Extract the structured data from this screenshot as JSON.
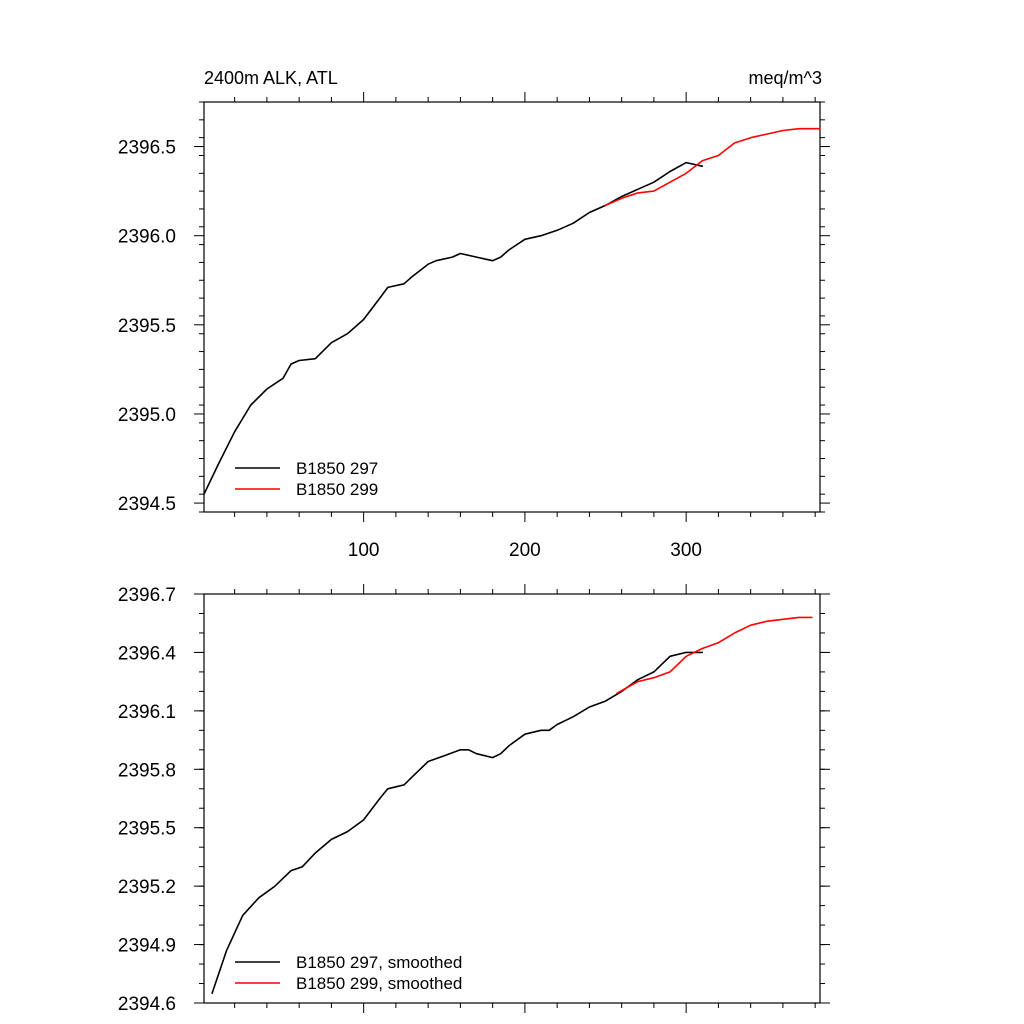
{
  "colors": {
    "axis": "#000000",
    "series_297": "#000000",
    "series_299": "#ff0000"
  },
  "chart_data": [
    {
      "type": "line",
      "title_left": "2400m ALK, ATL",
      "title_right": "meq/m^3",
      "xlim": [
        1,
        383
      ],
      "ylim": [
        2394.45,
        2396.75
      ],
      "xticks": [
        100,
        200,
        300
      ],
      "xtick_labels": [
        "100",
        "200",
        "300"
      ],
      "yticks": [
        2394.5,
        2395.0,
        2395.5,
        2396.0,
        2396.5
      ],
      "ytick_labels": [
        "2394.5",
        "2395.0",
        "2395.5",
        "2396.0",
        "2396.5"
      ],
      "legend": {
        "placement": "bottom-left",
        "entries": [
          "B1850 297",
          "B1850 299"
        ]
      },
      "series": [
        {
          "name": "B1850 297",
          "color": "#000000",
          "x": [
            1,
            10,
            20,
            30,
            40,
            50,
            55,
            60,
            70,
            80,
            90,
            100,
            110,
            115,
            125,
            130,
            140,
            145,
            155,
            160,
            170,
            180,
            185,
            190,
            200,
            210,
            220,
            230,
            240,
            250,
            260,
            270,
            280,
            290,
            300,
            310
          ],
          "y": [
            2394.55,
            2394.72,
            2394.9,
            2395.05,
            2395.14,
            2395.2,
            2395.28,
            2395.3,
            2395.31,
            2395.4,
            2395.45,
            2395.53,
            2395.65,
            2395.71,
            2395.73,
            2395.77,
            2395.84,
            2395.86,
            2395.88,
            2395.9,
            2395.88,
            2395.86,
            2395.88,
            2395.92,
            2395.98,
            2396.0,
            2396.03,
            2396.07,
            2396.13,
            2396.17,
            2396.22,
            2396.26,
            2396.3,
            2396.36,
            2396.41,
            2396.39
          ]
        },
        {
          "name": "B1850 299",
          "color": "#ff0000",
          "x": [
            250,
            260,
            270,
            280,
            290,
            300,
            310,
            320,
            330,
            340,
            350,
            360,
            370,
            383
          ],
          "y": [
            2396.17,
            2396.21,
            2396.24,
            2396.25,
            2396.3,
            2396.35,
            2396.42,
            2396.45,
            2396.52,
            2396.55,
            2396.57,
            2396.59,
            2396.6,
            2396.6
          ]
        }
      ]
    },
    {
      "type": "line",
      "xlim": [
        1,
        383
      ],
      "ylim": [
        2394.6,
        2396.7
      ],
      "xticks": [
        100,
        200,
        300
      ],
      "yticks": [
        2394.6,
        2394.9,
        2395.2,
        2395.5,
        2395.8,
        2396.1,
        2396.4,
        2396.7
      ],
      "ytick_labels": [
        "2394.6",
        "2394.9",
        "2395.2",
        "2395.5",
        "2395.8",
        "2396.1",
        "2396.4",
        "2396.7"
      ],
      "legend": {
        "placement": "bottom-left",
        "entries": [
          "B1850 297, smoothed",
          "B1850 299, smoothed"
        ]
      },
      "series": [
        {
          "name": "B1850 297, smoothed",
          "color": "#000000",
          "x": [
            6,
            15,
            25,
            35,
            45,
            55,
            62,
            70,
            80,
            90,
            100,
            110,
            115,
            120,
            125,
            130,
            140,
            150,
            160,
            165,
            170,
            180,
            185,
            190,
            200,
            210,
            215,
            220,
            230,
            240,
            250,
            260,
            270,
            280,
            290,
            300,
            310
          ],
          "y": [
            2394.65,
            2394.87,
            2395.05,
            2395.14,
            2395.2,
            2395.28,
            2395.3,
            2395.37,
            2395.44,
            2395.48,
            2395.54,
            2395.65,
            2395.7,
            2395.71,
            2395.72,
            2395.76,
            2395.84,
            2395.87,
            2395.9,
            2395.9,
            2395.88,
            2395.86,
            2395.88,
            2395.92,
            2395.98,
            2396.0,
            2396.0,
            2396.03,
            2396.07,
            2396.12,
            2396.15,
            2396.2,
            2396.26,
            2396.3,
            2396.38,
            2396.4,
            2396.4
          ]
        },
        {
          "name": "B1850 299, smoothed",
          "color": "#ff0000",
          "x": [
            257,
            270,
            280,
            290,
            300,
            310,
            320,
            330,
            340,
            350,
            360,
            370,
            375,
            378
          ],
          "y": [
            2396.19,
            2396.25,
            2396.27,
            2396.3,
            2396.38,
            2396.42,
            2396.45,
            2396.5,
            2396.54,
            2396.56,
            2396.57,
            2396.58,
            2396.58,
            2396.58
          ]
        }
      ]
    }
  ]
}
